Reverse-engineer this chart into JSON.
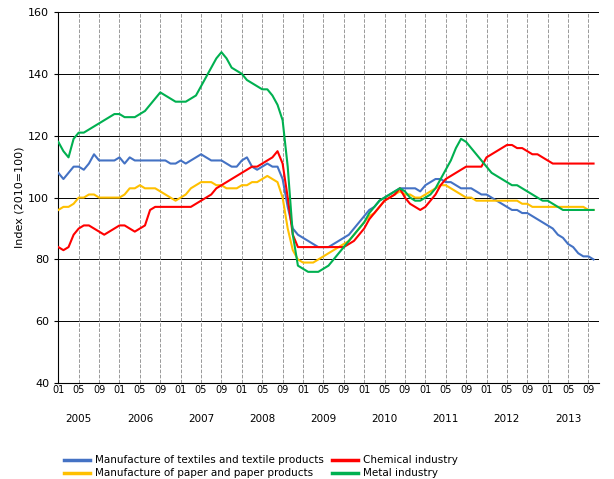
{
  "title": "",
  "ylabel": "Index (2010=100)",
  "ylim": [
    40,
    160
  ],
  "yticks": [
    40,
    60,
    80,
    100,
    120,
    140,
    160
  ],
  "colors": {
    "blue": "#4472C4",
    "yellow": "#FFC000",
    "red": "#FF0000",
    "green": "#00B050"
  },
  "legend": [
    "Manufacture of textiles and textile products",
    "Manufacture of paper and paper products",
    "Chemical industry",
    "Metal industry"
  ],
  "blue": [
    108,
    106,
    108,
    110,
    110,
    109,
    111,
    114,
    112,
    112,
    112,
    112,
    113,
    111,
    113,
    112,
    112,
    112,
    112,
    112,
    112,
    112,
    111,
    111,
    112,
    111,
    112,
    113,
    114,
    113,
    112,
    112,
    112,
    111,
    110,
    110,
    112,
    113,
    110,
    109,
    110,
    111,
    110,
    110,
    106,
    97,
    90,
    88,
    87,
    86,
    85,
    84,
    84,
    84,
    85,
    86,
    87,
    88,
    90,
    92,
    94,
    96,
    97,
    99,
    100,
    101,
    102,
    103,
    103,
    103,
    103,
    102,
    104,
    105,
    106,
    106,
    105,
    105,
    104,
    103,
    103,
    103,
    102,
    101,
    101,
    100,
    99,
    98,
    97,
    96,
    96,
    95,
    95,
    94,
    93,
    92,
    91,
    90,
    88,
    87,
    85,
    84,
    82,
    81,
    81,
    80
  ],
  "yellow": [
    96,
    97,
    97,
    98,
    100,
    100,
    101,
    101,
    100,
    100,
    100,
    100,
    100,
    101,
    103,
    103,
    104,
    103,
    103,
    103,
    102,
    101,
    100,
    99,
    100,
    101,
    103,
    104,
    105,
    105,
    105,
    104,
    104,
    103,
    103,
    103,
    104,
    104,
    105,
    105,
    106,
    107,
    106,
    105,
    100,
    90,
    83,
    80,
    79,
    79,
    79,
    80,
    81,
    82,
    83,
    84,
    85,
    86,
    88,
    90,
    92,
    94,
    95,
    97,
    99,
    100,
    101,
    102,
    101,
    101,
    100,
    100,
    101,
    102,
    103,
    104,
    104,
    103,
    102,
    101,
    100,
    100,
    99,
    99,
    99,
    99,
    99,
    99,
    99,
    99,
    99,
    98,
    98,
    97,
    97,
    97,
    97,
    97,
    97,
    97,
    97,
    97,
    97,
    97,
    96,
    96
  ],
  "red": [
    84,
    83,
    84,
    88,
    90,
    91,
    91,
    90,
    89,
    88,
    89,
    90,
    91,
    91,
    90,
    89,
    90,
    91,
    96,
    97,
    97,
    97,
    97,
    97,
    97,
    97,
    97,
    98,
    99,
    100,
    101,
    103,
    104,
    105,
    106,
    107,
    108,
    109,
    110,
    110,
    111,
    112,
    113,
    115,
    111,
    100,
    88,
    84,
    84,
    84,
    84,
    84,
    84,
    84,
    84,
    84,
    84,
    85,
    86,
    88,
    90,
    93,
    95,
    97,
    99,
    100,
    101,
    103,
    100,
    98,
    97,
    96,
    97,
    99,
    101,
    104,
    106,
    107,
    108,
    109,
    110,
    110,
    110,
    110,
    113,
    114,
    115,
    116,
    117,
    117,
    116,
    116,
    115,
    114,
    114,
    113,
    112,
    111,
    111,
    111,
    111,
    111,
    111,
    111,
    111,
    111
  ],
  "green": [
    118,
    115,
    113,
    119,
    121,
    121,
    122,
    123,
    124,
    125,
    126,
    127,
    127,
    126,
    126,
    126,
    127,
    128,
    130,
    132,
    134,
    133,
    132,
    131,
    131,
    131,
    132,
    133,
    136,
    139,
    142,
    145,
    147,
    145,
    142,
    141,
    140,
    138,
    137,
    136,
    135,
    135,
    133,
    130,
    125,
    110,
    88,
    78,
    77,
    76,
    76,
    76,
    77,
    78,
    80,
    82,
    84,
    86,
    88,
    90,
    92,
    95,
    97,
    99,
    100,
    101,
    102,
    103,
    102,
    100,
    99,
    99,
    100,
    101,
    103,
    106,
    109,
    112,
    116,
    119,
    118,
    116,
    114,
    112,
    110,
    108,
    107,
    106,
    105,
    104,
    104,
    103,
    102,
    101,
    100,
    99,
    99,
    98,
    97,
    96,
    96,
    96,
    96,
    96,
    96,
    96
  ]
}
